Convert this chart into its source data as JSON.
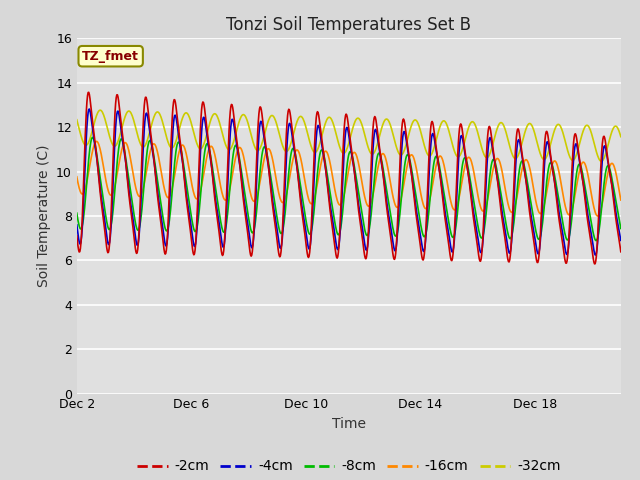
{
  "title": "Tonzi Soil Temperatures Set B",
  "xlabel": "Time",
  "ylabel": "Soil Temperature (C)",
  "annotation": "TZ_fmet",
  "ylim": [
    0,
    16
  ],
  "yticks": [
    0,
    2,
    4,
    6,
    8,
    10,
    12,
    14,
    16
  ],
  "xlim_days": [
    0,
    19
  ],
  "xtick_positions": [
    0,
    4,
    8,
    12,
    16
  ],
  "xtick_labels": [
    "Dec 2",
    "Dec 6",
    "Dec 10",
    "Dec 14",
    "Dec 18"
  ],
  "series": {
    "-2cm": {
      "color": "#cc0000",
      "lw": 1.2
    },
    "-4cm": {
      "color": "#0000cc",
      "lw": 1.2
    },
    "-8cm": {
      "color": "#00bb00",
      "lw": 1.2
    },
    "-16cm": {
      "color": "#ff8800",
      "lw": 1.2
    },
    "-32cm": {
      "color": "#cccc00",
      "lw": 1.2
    }
  },
  "bg_inner": "#e0e0e0",
  "bg_outer": "#d8d8d8",
  "grid_color": "#ffffff",
  "title_fontsize": 12,
  "axis_label_fontsize": 10,
  "tick_fontsize": 9,
  "legend_fontsize": 10
}
